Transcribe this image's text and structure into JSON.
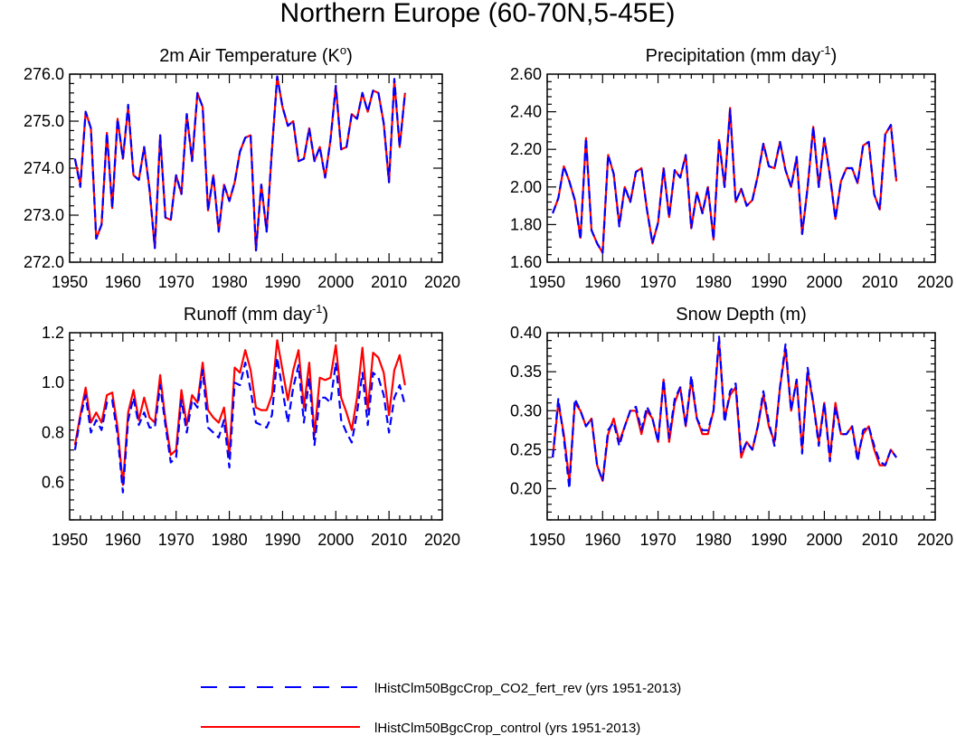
{
  "title": "Northern Europe (60-70N,5-45E)",
  "legend": {
    "items": [
      {
        "label": "lHistClm50BgcCrop_CO2_fert_rev (yrs 1951-2013)",
        "color": "#0000ff",
        "dash": "dashed"
      },
      {
        "label": "lHistClm50BgcCrop_control (yrs 1951-2013)",
        "color": "#ff0000",
        "dash": "solid"
      }
    ]
  },
  "chart_data": [
    {
      "type": "line",
      "title": "2m Air Temperature",
      "unit_base": "K",
      "unit_sup": "o",
      "xlim": [
        1950,
        2020
      ],
      "ylim": [
        272,
        276
      ],
      "xticks": [
        1950,
        1960,
        1970,
        1980,
        1990,
        2000,
        2010,
        2020
      ],
      "yticks": [
        272,
        273,
        274,
        275,
        276
      ],
      "yticklabels": [
        "272.0",
        "273.0",
        "274.0",
        "275.0",
        "276.0"
      ],
      "x_start": 1951,
      "series": [
        {
          "name": "lHistClm50BgcCrop_control (yrs 1951-2013)",
          "color": "#ff0000",
          "dash": "solid",
          "values": [
            274.2,
            273.65,
            275.2,
            274.85,
            272.5,
            272.8,
            274.75,
            273.15,
            275.05,
            274.2,
            275.3,
            273.85,
            273.75,
            274.45,
            273.55,
            272.3,
            274.7,
            272.95,
            272.9,
            273.85,
            273.45,
            275.15,
            274.15,
            275.6,
            275.3,
            273.1,
            273.85,
            272.65,
            273.65,
            273.3,
            273.7,
            274.35,
            274.65,
            274.7,
            272.25,
            273.65,
            272.65,
            274.4,
            275.95,
            275.3,
            274.9,
            275.0,
            274.15,
            274.2,
            274.85,
            274.15,
            274.45,
            273.8,
            274.6,
            275.75,
            274.4,
            274.45,
            275.15,
            275.05,
            275.6,
            275.2,
            275.65,
            275.6,
            274.95,
            273.7,
            275.85,
            274.45,
            275.6
          ]
        },
        {
          "name": "lHistClm50BgcCrop_CO2_fert_rev (yrs 1951-2013)",
          "color": "#0000ff",
          "dash": "dashed",
          "values": [
            274.2,
            273.6,
            275.2,
            274.85,
            272.5,
            272.8,
            274.75,
            273.15,
            275.05,
            274.2,
            275.35,
            273.85,
            273.75,
            274.45,
            273.55,
            272.3,
            274.7,
            272.95,
            272.9,
            273.85,
            273.45,
            275.15,
            274.15,
            275.6,
            275.3,
            273.1,
            273.85,
            272.65,
            273.65,
            273.3,
            273.7,
            274.35,
            274.65,
            274.7,
            272.25,
            273.65,
            272.65,
            274.4,
            275.95,
            275.3,
            274.9,
            275.0,
            274.15,
            274.2,
            274.85,
            274.15,
            274.45,
            273.8,
            274.6,
            275.75,
            274.4,
            274.45,
            275.15,
            275.05,
            275.6,
            275.2,
            275.65,
            275.6,
            274.95,
            273.7,
            275.9,
            274.45,
            275.6
          ]
        }
      ]
    },
    {
      "type": "line",
      "title": "Precipitation",
      "unit_base": "mm day",
      "unit_sup": "-1",
      "xlim": [
        1950,
        2020
      ],
      "ylim": [
        1.6,
        2.6
      ],
      "xticks": [
        1950,
        1960,
        1970,
        1980,
        1990,
        2000,
        2010,
        2020
      ],
      "yticks": [
        1.6,
        1.8,
        2.0,
        2.2,
        2.4,
        2.6
      ],
      "yticklabels": [
        "1.60",
        "1.80",
        "2.00",
        "2.20",
        "2.40",
        "2.60"
      ],
      "x_start": 1951,
      "series": [
        {
          "name": "lHistClm50BgcCrop_control (yrs 1951-2013)",
          "color": "#ff0000",
          "dash": "solid",
          "values": [
            1.86,
            1.94,
            2.11,
            2.03,
            1.93,
            1.73,
            2.26,
            1.77,
            1.7,
            1.65,
            2.17,
            2.07,
            1.8,
            2.0,
            1.92,
            2.08,
            2.1,
            1.88,
            1.7,
            1.81,
            2.1,
            1.84,
            2.09,
            2.05,
            2.17,
            1.78,
            1.97,
            1.86,
            2.0,
            1.72,
            2.25,
            2.0,
            2.42,
            1.92,
            1.99,
            1.9,
            1.93,
            2.06,
            2.23,
            2.11,
            2.1,
            2.24,
            2.09,
            2.0,
            2.16,
            1.75,
            2.0,
            2.32,
            2.0,
            2.26,
            2.06,
            1.83,
            2.03,
            2.1,
            2.1,
            2.02,
            2.22,
            2.24,
            1.96,
            1.88,
            2.28,
            2.33,
            2.03
          ]
        },
        {
          "name": "lHistClm50BgcCrop_CO2_fert_rev (yrs 1951-2013)",
          "color": "#0000ff",
          "dash": "dashed",
          "values": [
            1.86,
            1.94,
            2.11,
            2.03,
            1.93,
            1.72,
            2.26,
            1.77,
            1.7,
            1.65,
            2.17,
            2.07,
            1.79,
            2.0,
            1.92,
            2.08,
            2.1,
            1.88,
            1.7,
            1.81,
            2.1,
            1.84,
            2.09,
            2.05,
            2.17,
            1.78,
            1.97,
            1.86,
            2.0,
            1.72,
            2.25,
            2.0,
            2.41,
            1.92,
            1.99,
            1.9,
            1.93,
            2.06,
            2.23,
            2.11,
            2.1,
            2.24,
            2.09,
            2.0,
            2.16,
            1.75,
            2.0,
            2.32,
            2.0,
            2.26,
            2.06,
            1.83,
            2.03,
            2.1,
            2.1,
            2.02,
            2.22,
            2.24,
            1.96,
            1.88,
            2.28,
            2.33,
            2.03
          ]
        }
      ]
    },
    {
      "type": "line",
      "title": "Runoff",
      "unit_base": "mm day",
      "unit_sup": "-1",
      "xlim": [
        1950,
        2020
      ],
      "ylim": [
        0.45,
        1.2
      ],
      "xticks": [
        1950,
        1960,
        1970,
        1980,
        1990,
        2000,
        2010,
        2020
      ],
      "yticks": [
        0.6,
        0.8,
        1.0,
        1.2
      ],
      "yticklabels": [
        "0.6",
        "0.8",
        "1.0",
        "1.2"
      ],
      "x_start": 1951,
      "series": [
        {
          "name": "lHistClm50BgcCrop_control (yrs 1951-2013)",
          "color": "#ff0000",
          "dash": "solid",
          "values": [
            0.75,
            0.87,
            0.98,
            0.84,
            0.88,
            0.84,
            0.95,
            0.96,
            0.82,
            0.59,
            0.88,
            0.97,
            0.85,
            0.94,
            0.86,
            0.84,
            1.03,
            0.85,
            0.71,
            0.73,
            0.97,
            0.83,
            0.95,
            0.92,
            1.08,
            0.89,
            0.86,
            0.84,
            0.9,
            0.71,
            1.06,
            1.04,
            1.13,
            1.05,
            0.9,
            0.89,
            0.89,
            0.95,
            1.17,
            1.05,
            0.93,
            1.05,
            1.13,
            0.9,
            1.08,
            0.79,
            1.02,
            1.01,
            1.02,
            1.15,
            0.94,
            0.88,
            0.81,
            0.94,
            1.14,
            0.89,
            1.12,
            1.1,
            1.04,
            0.87,
            1.05,
            1.11,
            0.99
          ]
        },
        {
          "name": "lHistClm50BgcCrop_CO2_fert_rev (yrs 1951-2013)",
          "color": "#0000ff",
          "dash": "dashed",
          "values": [
            0.73,
            0.86,
            0.95,
            0.8,
            0.85,
            0.81,
            0.92,
            0.93,
            0.79,
            0.56,
            0.85,
            0.94,
            0.83,
            0.88,
            0.82,
            0.82,
            0.99,
            0.83,
            0.68,
            0.7,
            0.93,
            0.8,
            0.93,
            0.9,
            1.05,
            0.82,
            0.8,
            0.78,
            0.85,
            0.66,
            1.0,
            0.99,
            1.08,
            0.97,
            0.84,
            0.83,
            0.82,
            0.87,
            1.1,
            0.97,
            0.84,
            0.98,
            1.07,
            0.84,
            1.02,
            0.75,
            0.94,
            0.94,
            0.92,
            1.08,
            0.85,
            0.8,
            0.76,
            0.88,
            1.04,
            0.83,
            1.04,
            1.02,
            0.95,
            0.8,
            0.94,
            0.99,
            0.91
          ]
        }
      ]
    },
    {
      "type": "line",
      "title": "Snow Depth (m)",
      "unit_base": "",
      "unit_sup": "",
      "xlim": [
        1950,
        2020
      ],
      "ylim": [
        0.16,
        0.4
      ],
      "xticks": [
        1950,
        1960,
        1970,
        1980,
        1990,
        2000,
        2010,
        2020
      ],
      "yticks": [
        0.2,
        0.25,
        0.3,
        0.35,
        0.4
      ],
      "yticklabels": [
        "0.20",
        "0.25",
        "0.30",
        "0.35",
        "0.40"
      ],
      "x_start": 1951,
      "series": [
        {
          "name": "lHistClm50BgcCrop_control (yrs 1951-2013)",
          "color": "#ff0000",
          "dash": "solid",
          "values": [
            0.24,
            0.31,
            0.27,
            0.21,
            0.31,
            0.3,
            0.28,
            0.29,
            0.23,
            0.21,
            0.27,
            0.29,
            0.26,
            0.28,
            0.3,
            0.3,
            0.27,
            0.3,
            0.29,
            0.26,
            0.34,
            0.26,
            0.31,
            0.33,
            0.28,
            0.34,
            0.29,
            0.27,
            0.27,
            0.3,
            0.39,
            0.29,
            0.32,
            0.33,
            0.24,
            0.26,
            0.25,
            0.28,
            0.32,
            0.28,
            0.26,
            0.33,
            0.38,
            0.3,
            0.34,
            0.25,
            0.35,
            0.31,
            0.26,
            0.31,
            0.24,
            0.31,
            0.27,
            0.27,
            0.28,
            0.24,
            0.27,
            0.28,
            0.25,
            0.23,
            0.23,
            0.25,
            0.24
          ]
        },
        {
          "name": "lHistClm50BgcCrop_CO2_fert_rev (yrs 1951-2013)",
          "color": "#0000ff",
          "dash": "dashed",
          "values": [
            0.24,
            0.315,
            0.265,
            0.2,
            0.315,
            0.3,
            0.28,
            0.29,
            0.23,
            0.21,
            0.275,
            0.285,
            0.255,
            0.28,
            0.3,
            0.305,
            0.275,
            0.305,
            0.29,
            0.26,
            0.34,
            0.265,
            0.315,
            0.33,
            0.28,
            0.345,
            0.29,
            0.275,
            0.275,
            0.3,
            0.395,
            0.285,
            0.325,
            0.335,
            0.245,
            0.26,
            0.25,
            0.28,
            0.325,
            0.285,
            0.255,
            0.33,
            0.385,
            0.3,
            0.34,
            0.245,
            0.355,
            0.31,
            0.255,
            0.31,
            0.235,
            0.305,
            0.27,
            0.27,
            0.28,
            0.235,
            0.275,
            0.28,
            0.255,
            0.235,
            0.23,
            0.25,
            0.24
          ]
        }
      ]
    }
  ]
}
